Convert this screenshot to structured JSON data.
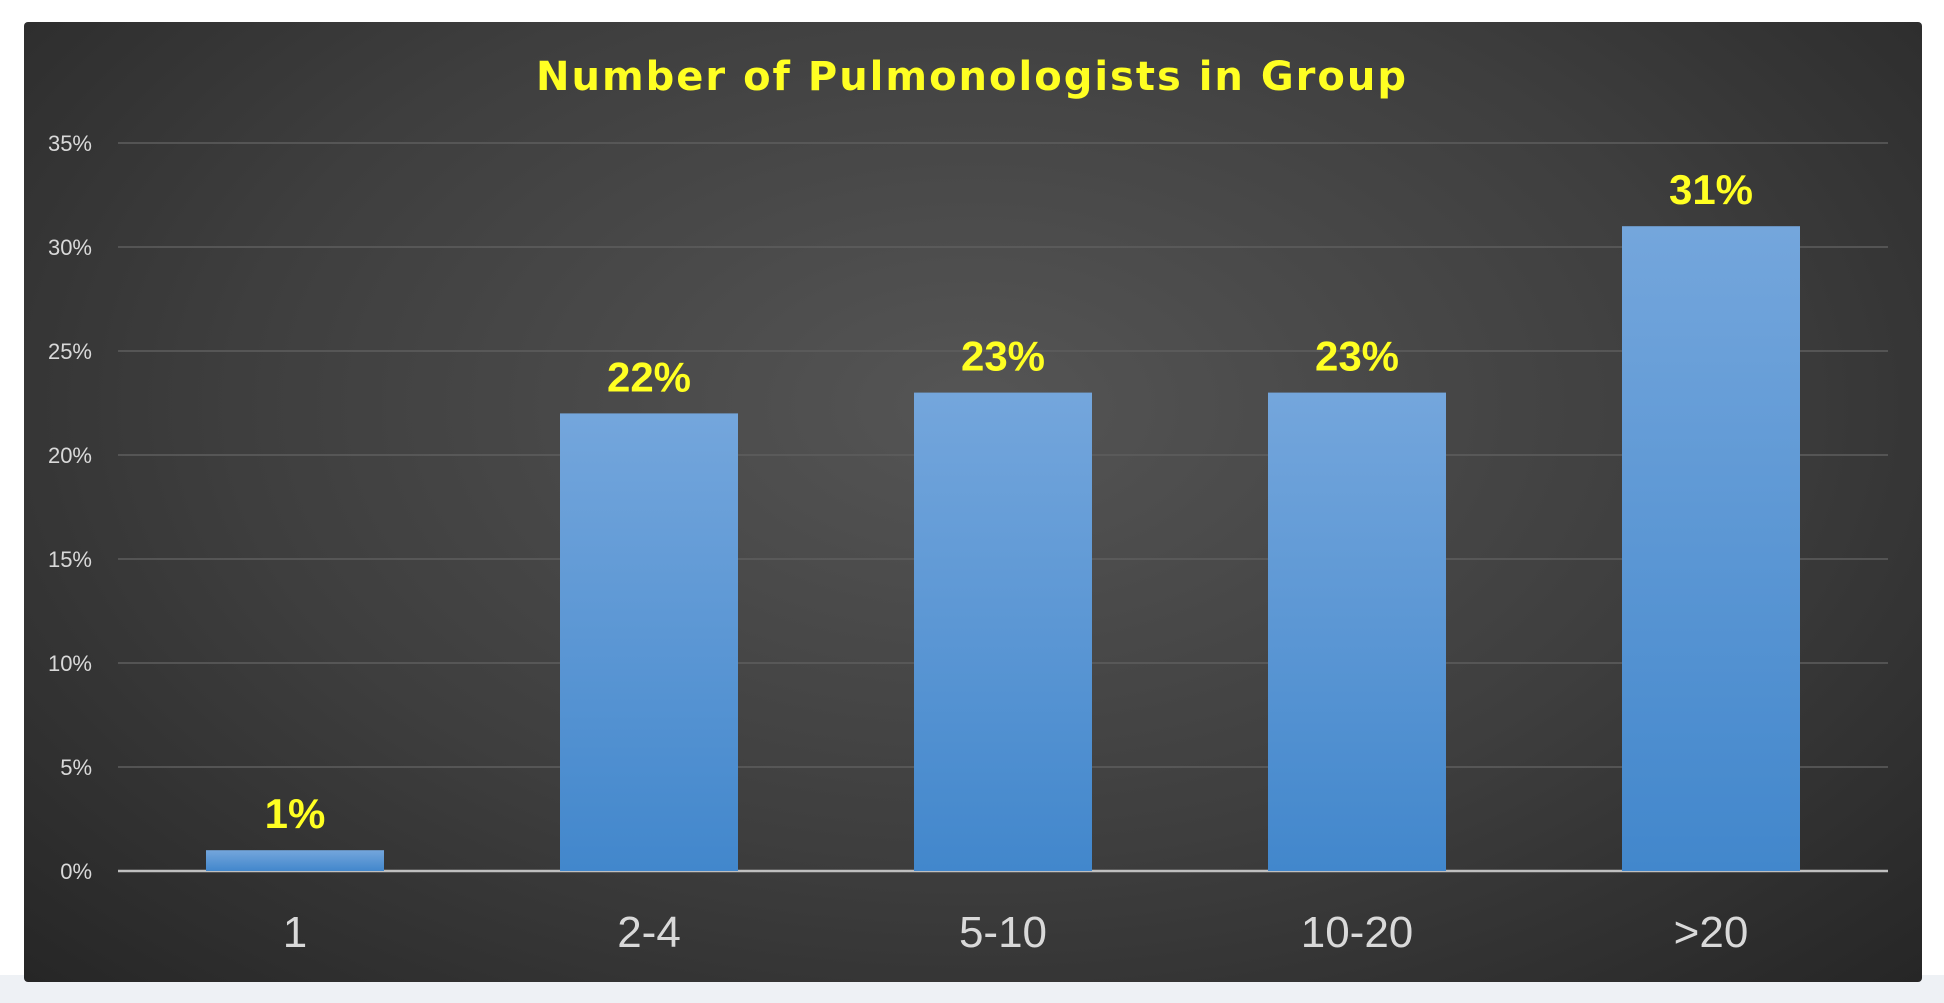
{
  "chart_data": {
    "type": "bar",
    "title": "Number of Pulmonologists in Group",
    "categories": [
      "1",
      "2-4",
      "5-10",
      "10-20",
      ">20"
    ],
    "values": [
      1,
      22,
      23,
      23,
      31
    ],
    "data_labels": [
      "1%",
      "22%",
      "23%",
      "23%",
      "31%"
    ],
    "xlabel": "",
    "ylabel": "",
    "ylim": [
      0,
      35
    ],
    "yticks": [
      {
        "value": 0,
        "label": "0%"
      },
      {
        "value": 5,
        "label": "5%"
      },
      {
        "value": 10,
        "label": "10%"
      },
      {
        "value": 15,
        "label": "15%"
      },
      {
        "value": 20,
        "label": "20%"
      },
      {
        "value": 25,
        "label": "25%"
      },
      {
        "value": 30,
        "label": "30%"
      },
      {
        "value": 35,
        "label": "35%"
      }
    ],
    "grid": true,
    "legend": "none",
    "colors": {
      "bar_top": "#74a6dc",
      "bar_bottom": "#4287cc",
      "title": "#ffff22",
      "data_label": "#ffff22",
      "tick_text": "#d9d9d9",
      "gridline": "#5e5e5e",
      "axis": "#bfbfbf"
    }
  }
}
